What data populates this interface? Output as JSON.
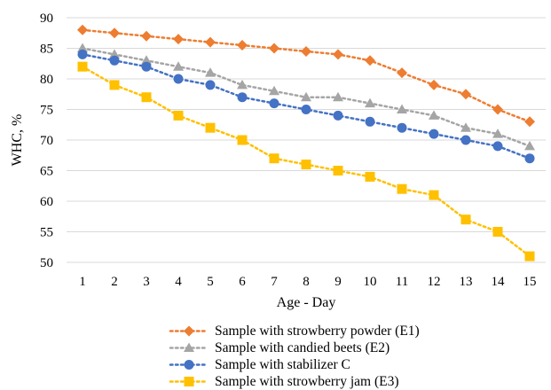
{
  "chart_data": {
    "type": "line",
    "title": "",
    "xlabel": "Age - Day",
    "ylabel": "WHC, %",
    "x": [
      1,
      2,
      3,
      4,
      5,
      6,
      7,
      8,
      9,
      10,
      11,
      12,
      13,
      14,
      15
    ],
    "ylim": [
      50,
      90
    ],
    "yticks": [
      50,
      55,
      60,
      65,
      70,
      75,
      80,
      85,
      90
    ],
    "grid": true,
    "legend_position": "bottom",
    "series": [
      {
        "name": "Sample with strowberry powder (E1)",
        "color": "#ED7D31",
        "marker": "diamond",
        "values": [
          88,
          87.5,
          87,
          86.5,
          86,
          85.5,
          85,
          84.5,
          84,
          83,
          81,
          79,
          77.5,
          75,
          73
        ]
      },
      {
        "name": "Sample with candied beets (E2)",
        "color": "#A5A5A5",
        "marker": "triangle",
        "values": [
          85,
          84,
          83,
          82,
          81,
          79,
          78,
          77,
          77,
          76,
          75,
          74,
          72,
          71,
          69
        ]
      },
      {
        "name": "Sample with stabilizer C",
        "color": "#4472C4",
        "marker": "circle",
        "values": [
          84,
          83,
          82,
          80,
          79,
          77,
          76,
          75,
          74,
          73,
          72,
          71,
          70,
          69,
          67
        ]
      },
      {
        "name": "Sample with strowberry jam (E3)",
        "color": "#FFC000",
        "marker": "square",
        "values": [
          82,
          79,
          77,
          74,
          72,
          70,
          67,
          66,
          65,
          64,
          62,
          61,
          57,
          55,
          51
        ]
      }
    ]
  }
}
